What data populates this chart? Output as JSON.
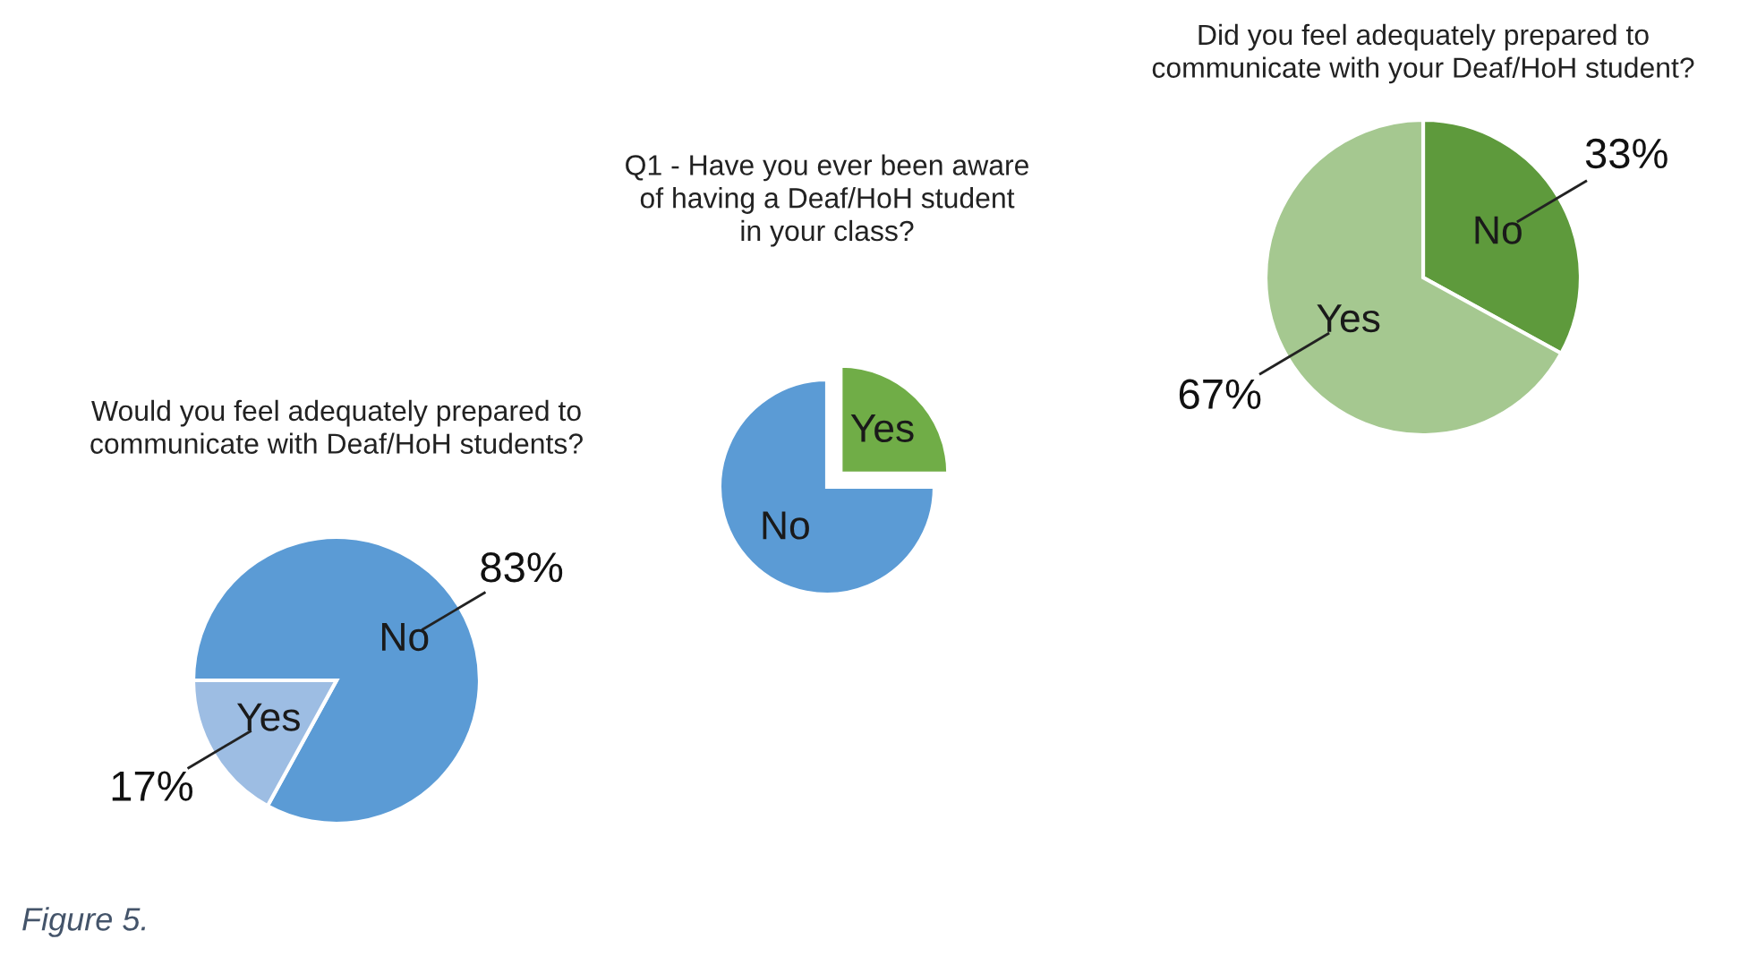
{
  "chart_data": [
    {
      "type": "pie",
      "title": "Would you feel adequately prepared to\ncommunicate with Deaf/HoH students?",
      "categories": [
        "No",
        "Yes"
      ],
      "values": [
        83,
        17
      ],
      "colors": [
        "#5b9bd5",
        "#9dbde3"
      ],
      "value_labels": [
        "83%",
        "17%"
      ],
      "annotations": [
        "Figure 5."
      ]
    },
    {
      "type": "pie",
      "title": "Q1 - Have you ever been aware\nof having a Deaf/HoH student\nin your class?",
      "categories": [
        "Yes",
        "No"
      ],
      "values": [
        25,
        75
      ],
      "colors": [
        "#70ad47",
        "#5b9bd5"
      ]
    },
    {
      "type": "pie",
      "title": "Did you feel adequately prepared to\ncommunicate with your Deaf/HoH student?",
      "categories": [
        "No",
        "Yes"
      ],
      "values": [
        33,
        67
      ],
      "colors": [
        "#5e9a3c",
        "#a5c890"
      ],
      "value_labels": [
        "33%",
        "67%"
      ]
    }
  ]
}
